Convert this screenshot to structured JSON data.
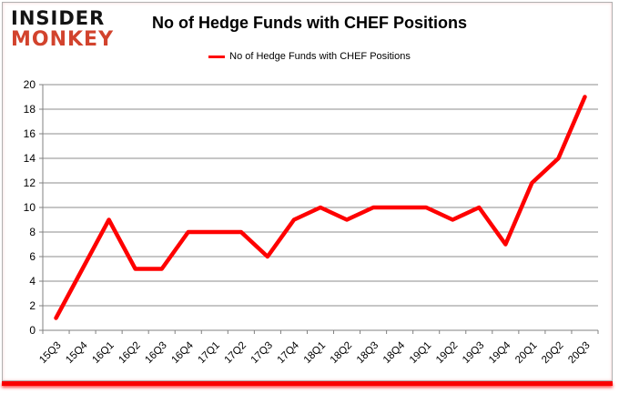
{
  "logo": {
    "line1": "INSIDER",
    "line2": "MONKEY"
  },
  "title": "No of Hedge Funds with CHEF Positions",
  "legend": {
    "label": "No of Hedge Funds with CHEF Positions"
  },
  "colors": {
    "series_line": "#fe0000",
    "grid": "#8e8e8e",
    "axis": "#808080",
    "text": "#000000",
    "logo_black": "#141414",
    "logo_red": "#d2432d",
    "bottom_bar": "#fa0000",
    "frame_border": "#b0b0b0"
  },
  "chart_data": {
    "type": "line",
    "title": "No of Hedge Funds with CHEF Positions",
    "categories": [
      "15Q3",
      "15Q4",
      "16Q1",
      "16Q2",
      "16Q3",
      "16Q4",
      "17Q1",
      "17Q2",
      "17Q3",
      "17Q4",
      "18Q1",
      "18Q2",
      "18Q3",
      "18Q4",
      "19Q1",
      "19Q2",
      "19Q3",
      "19Q4",
      "20Q1",
      "20Q2",
      "20Q3"
    ],
    "series": [
      {
        "name": "No of Hedge Funds with CHEF Positions",
        "color": "#fe0000",
        "values": [
          1,
          5,
          9,
          5,
          5,
          8,
          8,
          8,
          6,
          9,
          10,
          9,
          10,
          10,
          10,
          9,
          10,
          7,
          12,
          14,
          19
        ]
      }
    ],
    "xlabel": "",
    "ylabel": "",
    "ylim": [
      0,
      20
    ],
    "ytick_step": 2,
    "yticks": [
      0,
      2,
      4,
      6,
      8,
      10,
      12,
      14,
      16,
      18,
      20
    ],
    "grid": true,
    "legend_position": "top"
  }
}
